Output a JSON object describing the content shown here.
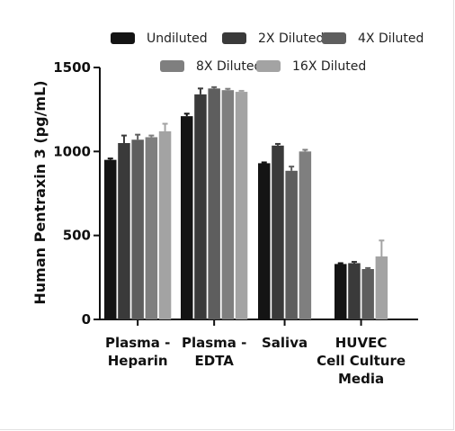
{
  "chart_data": {
    "type": "bar",
    "ylabel": "Human Pentraxin 3 (pg/mL)",
    "xlabel": "",
    "title": "",
    "ylim": [
      0,
      1500
    ],
    "yticks": [
      0,
      500,
      1000,
      1500
    ],
    "legend_position": "top",
    "categories": [
      [
        "Plasma -",
        "Heparin"
      ],
      [
        "Plasma -",
        "EDTA"
      ],
      [
        "Saliva"
      ],
      [
        "HUVEC",
        "Cell Culture",
        "Media"
      ]
    ],
    "series": [
      {
        "name": "Undiluted",
        "color": "#141414",
        "values": [
          950,
          1210,
          930,
          330
        ],
        "errors": [
          8,
          15,
          5,
          5
        ]
      },
      {
        "name": "2X Diluted",
        "color": "#3a3a3a",
        "values": [
          1050,
          1340,
          1035,
          335
        ],
        "errors": [
          45,
          35,
          10,
          8
        ]
      },
      {
        "name": "4X Diluted",
        "color": "#5e5e5e",
        "values": [
          1070,
          1375,
          885,
          300
        ],
        "errors": [
          30,
          8,
          25,
          6
        ]
      },
      {
        "name": "8X Diluted",
        "color": "#7f7f7f",
        "values": [
          1085,
          1365,
          1000,
          null
        ],
        "errors": [
          10,
          8,
          10,
          null
        ]
      },
      {
        "name": "16X Diluted",
        "color": "#a3a3a3",
        "values": [
          1120,
          1355,
          null,
          375
        ],
        "errors": [
          45,
          6,
          null,
          95
        ]
      }
    ]
  }
}
